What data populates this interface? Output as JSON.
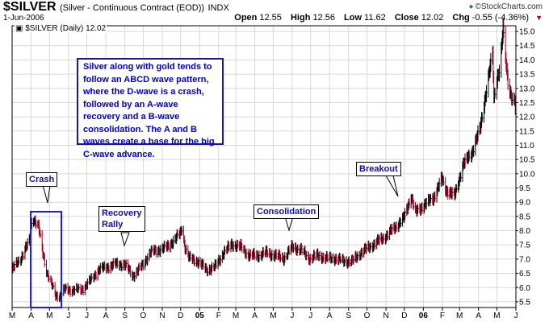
{
  "header": {
    "symbol": "$SILVER",
    "description": "(Silver - Continuous Contract (EOD))",
    "exchange": "INDX",
    "date": "1-Jun-2006",
    "brand": "©StockCharts.com",
    "open_label": "Open",
    "open": "12.55",
    "high_label": "High",
    "high": "12.56",
    "low_label": "Low",
    "low": "11.62",
    "close_label": "Close",
    "close": "12.02",
    "chg_label": "Chg",
    "chg": "-0.55 (-4.36%)"
  },
  "legend": "$SILVER (Daily) 12.02",
  "annotations": {
    "note": "Silver along with gold tends to follow an ABCD wave pattern, where the D-wave is a crash, followed by an A-wave recovery and a B-wave consolidation.  The A and B waves create a base for the big C-wave advance.",
    "crash": "Crash",
    "recovery_line1": "Recovery",
    "recovery_line2": "Rally",
    "consolidation": "Consolidation",
    "breakout": "Breakout"
  },
  "colors": {
    "axis": "#000000",
    "grid": "#d8d8d8",
    "up_bar": "#000000",
    "down_bar": "#a00020",
    "callout_text": "#1010a0",
    "crash_box": "#1a1aff",
    "note_text": "#0000c8"
  },
  "chart_data": {
    "type": "ohlc",
    "series_name": "$SILVER (Daily)",
    "x_tick_labels": [
      "M",
      "A",
      "M",
      "J",
      "J",
      "A",
      "S",
      "O",
      "N",
      "D",
      "05",
      "F",
      "M",
      "A",
      "M",
      "J",
      "J",
      "A",
      "S",
      "O",
      "N",
      "D",
      "06",
      "F",
      "M",
      "A",
      "M",
      "J"
    ],
    "y_ticks": [
      5.5,
      6.0,
      6.5,
      7.0,
      7.5,
      8.0,
      8.5,
      9.0,
      9.5,
      10.0,
      10.5,
      11.0,
      11.5,
      12.0,
      12.5,
      13.0,
      13.5,
      14.0,
      14.5,
      15.0
    ],
    "y_tick_labels": [
      "5.5",
      "6.0",
      "6.5",
      "7.0",
      "7.5",
      "8.0",
      "8.5",
      "9.0",
      "9.5",
      "10.0",
      "10.5",
      "11.0",
      "11.5",
      "12.0",
      "12.5",
      "13.0",
      "13.5",
      "14.0",
      "14.5",
      "15.0"
    ],
    "ylim": [
      5.3,
      15.2
    ],
    "x_range": [
      "2004-03-01",
      "2006-06-01"
    ],
    "grid": true,
    "points": [
      [
        "2004-03-01",
        6.6
      ],
      [
        "2004-03-15",
        7.0
      ],
      [
        "2004-03-29",
        7.6
      ],
      [
        "2004-04-02",
        8.3
      ],
      [
        "2004-04-05",
        8.4
      ],
      [
        "2004-04-13",
        8.1
      ],
      [
        "2004-04-20",
        7.2
      ],
      [
        "2004-04-23",
        6.9
      ],
      [
        "2004-04-27",
        6.5
      ],
      [
        "2004-05-04",
        6.1
      ],
      [
        "2004-05-11",
        5.7
      ],
      [
        "2004-05-18",
        5.7
      ],
      [
        "2004-05-25",
        5.9
      ],
      [
        "2004-06-08",
        5.9
      ],
      [
        "2004-06-22",
        5.9
      ],
      [
        "2004-07-06",
        6.2
      ],
      [
        "2004-07-20",
        6.6
      ],
      [
        "2004-08-03",
        6.7
      ],
      [
        "2004-08-17",
        6.8
      ],
      [
        "2004-08-31",
        6.8
      ],
      [
        "2004-09-14",
        6.4
      ],
      [
        "2004-09-28",
        6.7
      ],
      [
        "2004-10-12",
        7.2
      ],
      [
        "2004-10-26",
        7.3
      ],
      [
        "2004-11-09",
        7.4
      ],
      [
        "2004-11-23",
        7.7
      ],
      [
        "2004-12-01",
        7.9
      ],
      [
        "2004-12-03",
        8.1
      ],
      [
        "2004-12-08",
        7.4
      ],
      [
        "2004-12-15",
        7.0
      ],
      [
        "2004-12-29",
        6.9
      ],
      [
        "2005-01-12",
        6.6
      ],
      [
        "2005-01-26",
        6.7
      ],
      [
        "2005-02-09",
        7.2
      ],
      [
        "2005-02-23",
        7.5
      ],
      [
        "2005-03-09",
        7.4
      ],
      [
        "2005-03-23",
        7.1
      ],
      [
        "2005-04-06",
        7.1
      ],
      [
        "2005-04-20",
        7.2
      ],
      [
        "2005-05-04",
        7.1
      ],
      [
        "2005-05-18",
        7.0
      ],
      [
        "2005-06-01",
        7.4
      ],
      [
        "2005-06-15",
        7.3
      ],
      [
        "2005-06-29",
        7.0
      ],
      [
        "2005-07-13",
        7.1
      ],
      [
        "2005-07-27",
        7.0
      ],
      [
        "2005-08-10",
        7.0
      ],
      [
        "2005-08-24",
        6.9
      ],
      [
        "2005-09-07",
        6.9
      ],
      [
        "2005-09-21",
        7.2
      ],
      [
        "2005-10-05",
        7.4
      ],
      [
        "2005-10-19",
        7.6
      ],
      [
        "2005-11-02",
        7.8
      ],
      [
        "2005-11-16",
        8.1
      ],
      [
        "2005-11-30",
        8.4
      ],
      [
        "2005-12-12",
        9.2
      ],
      [
        "2005-12-19",
        8.6
      ],
      [
        "2006-01-03",
        8.9
      ],
      [
        "2006-01-17",
        9.1
      ],
      [
        "2006-01-31",
        9.8
      ],
      [
        "2006-02-07",
        9.4
      ],
      [
        "2006-02-21",
        9.2
      ],
      [
        "2006-03-07",
        10.3
      ],
      [
        "2006-03-21",
        10.7
      ],
      [
        "2006-04-04",
        11.6
      ],
      [
        "2006-04-13",
        12.8
      ],
      [
        "2006-04-19",
        13.6
      ],
      [
        "2006-04-24",
        14.2
      ],
      [
        "2006-04-26",
        12.6
      ],
      [
        "2006-05-02",
        13.4
      ],
      [
        "2006-05-05",
        13.6
      ],
      [
        "2006-05-09",
        14.5
      ],
      [
        "2006-05-11",
        15.1
      ],
      [
        "2006-05-15",
        14.0
      ],
      [
        "2006-05-19",
        13.2
      ],
      [
        "2006-05-22",
        12.9
      ],
      [
        "2006-05-26",
        12.6
      ],
      [
        "2006-05-30",
        12.5
      ],
      [
        "2006-06-01",
        12.0
      ]
    ]
  }
}
